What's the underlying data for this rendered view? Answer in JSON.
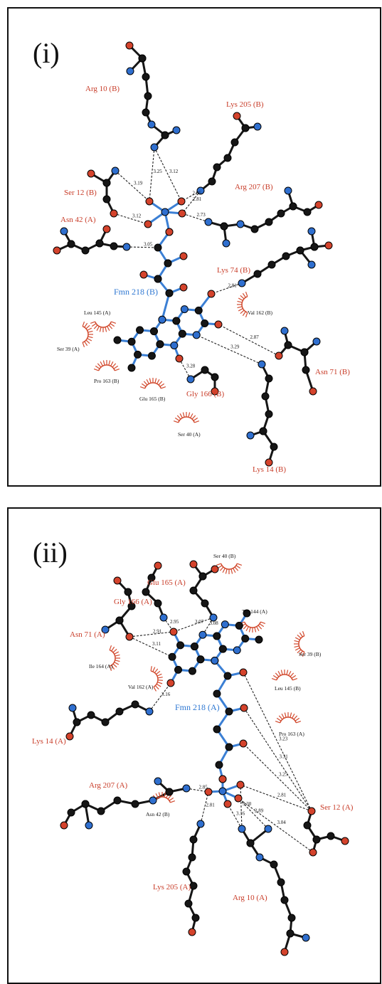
{
  "panels": [
    {
      "label": "(i)",
      "ligand": "Fmn 218 (B)",
      "residues": [
        "Arg 10 (B)",
        "Lys 205 (B)",
        "Ser 12 (B)",
        "Arg 207 (B)",
        "Asn 42 (A)",
        "Lys 74 (B)",
        "Asn 71 (B)",
        "Gly 166 (B)",
        "Lys 14 (B)"
      ],
      "hydrophobic": [
        "Leu 145 (A)",
        "Val 162 (B)",
        "Ser 39 (A)",
        "Pro 163 (B)",
        "Glu 165 (B)",
        "Ser 40 (A)"
      ],
      "distances": [
        "3.19",
        "3.25",
        "3.12",
        "2.86",
        "2.81",
        "3.12",
        "2.73",
        "3.05",
        "2.81",
        "2.87",
        "3.29",
        "3.28"
      ]
    },
    {
      "label": "(ii)",
      "ligand": "Fmn 218 (A)",
      "residues": [
        "Glu 165 (A)",
        "Gly 166 (A)",
        "Asn 71 (A)",
        "Lys 14 (A)",
        "Arg 207 (A)",
        "Ser 12 (A)",
        "Lys 205 (A)",
        "Arg 10 (A)"
      ],
      "hydrophobic": [
        "Ser 40 (B)",
        "Tyr 144 (A)",
        "Ser 39 (B)",
        "Ile 164 (A)",
        "Leu 145 (B)",
        "Val 162 (A)",
        "Pro 163 (A)",
        "Asn 42 (B)"
      ],
      "distances": [
        "2.95",
        "2.91",
        "3.07",
        "3.08",
        "3.11",
        "3.16",
        "3.23",
        "3.31",
        "3.25",
        "2.81",
        "2.85",
        "2.81",
        "3.16",
        "3.30",
        "2.89",
        "3.04"
      ]
    }
  ]
}
